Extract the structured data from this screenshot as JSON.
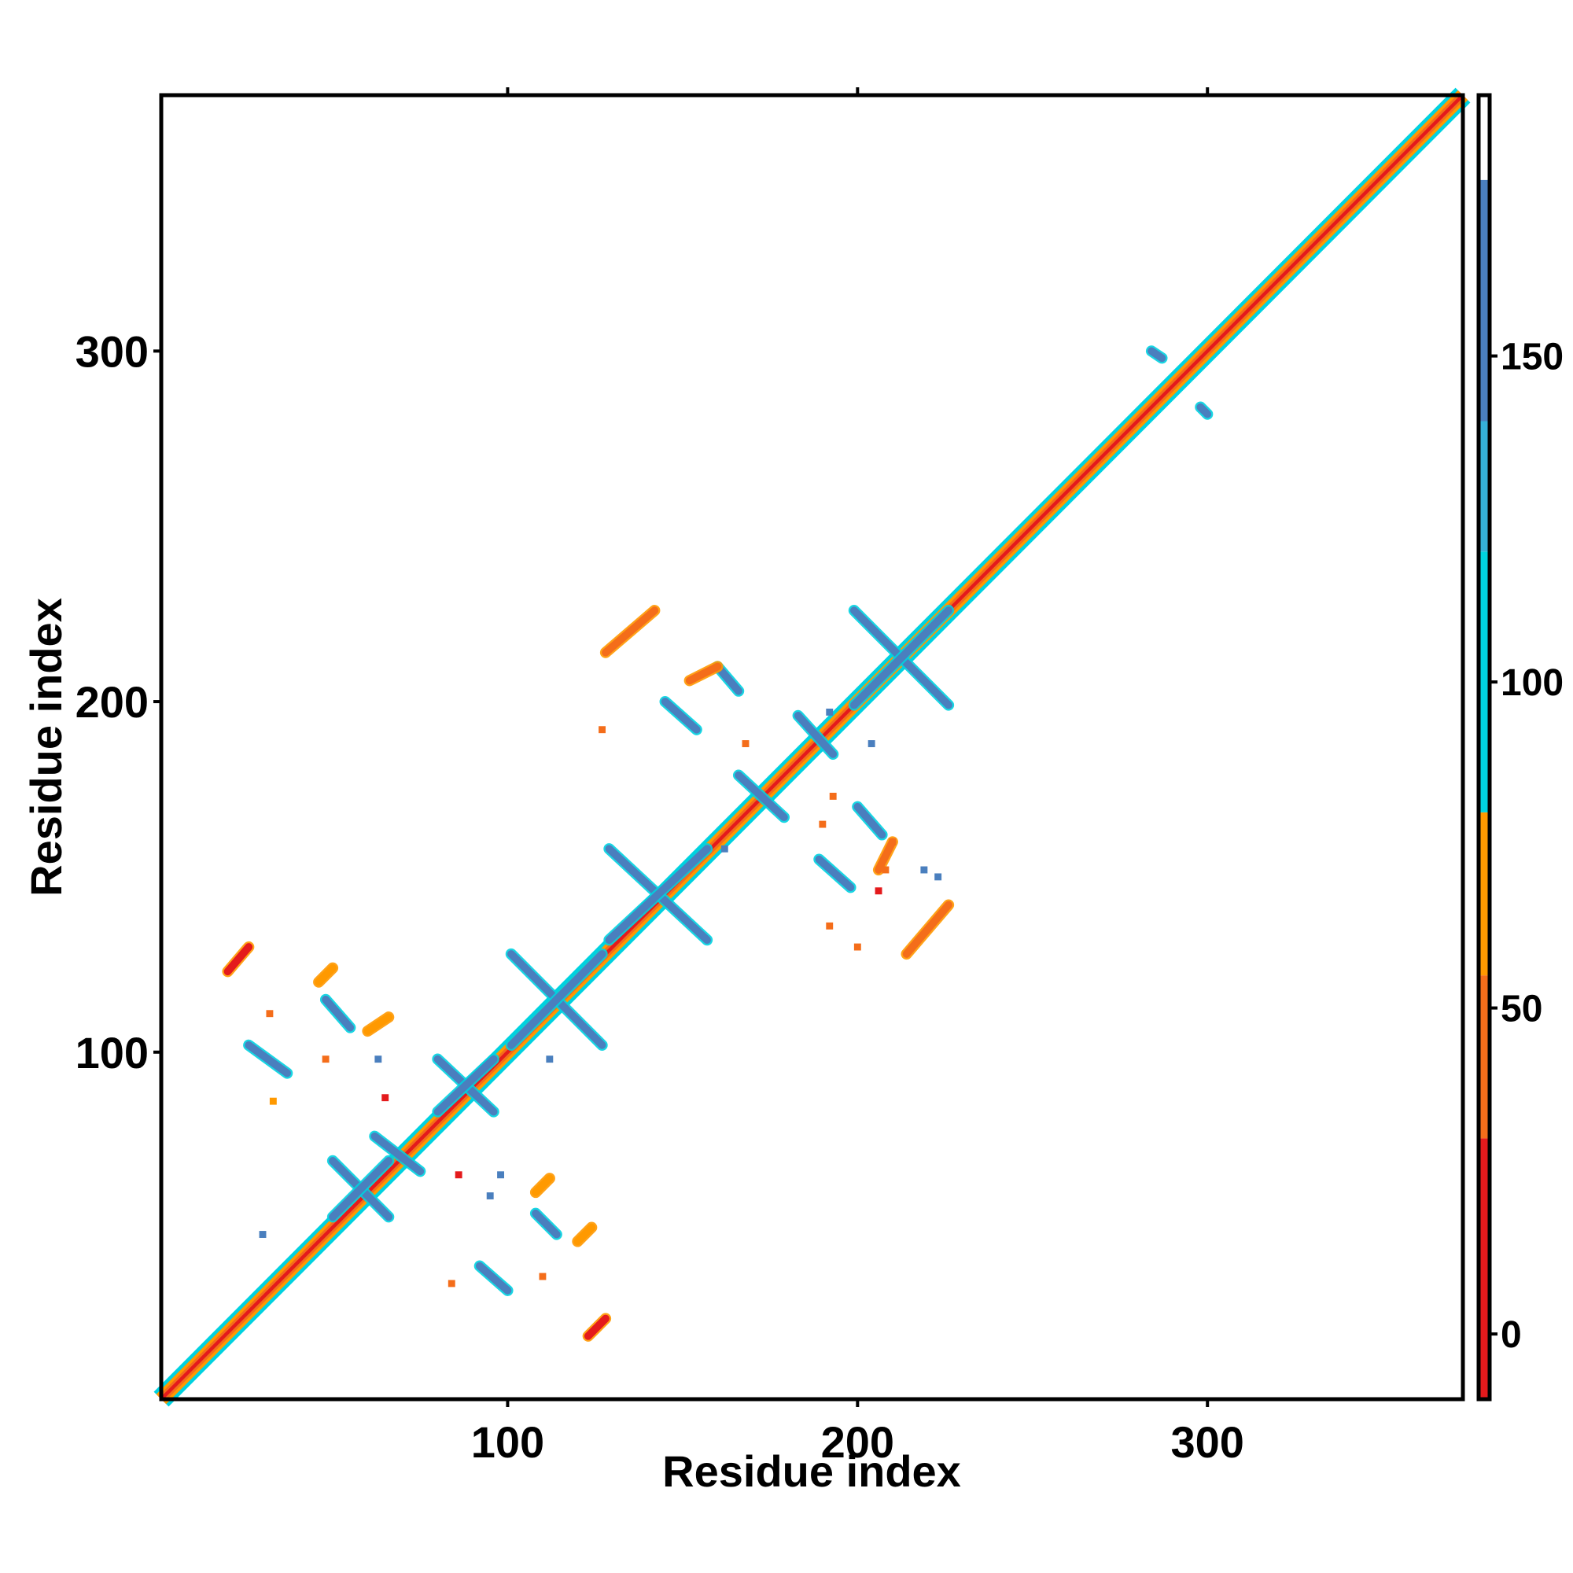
{
  "chart_data": {
    "type": "heatmap",
    "title": "",
    "xlabel": "Residue index",
    "ylabel": "Residue index",
    "xlim": [
      1,
      373
    ],
    "ylim": [
      1,
      373
    ],
    "x_ticks": [
      100,
      200,
      300
    ],
    "x_tick_labels": [
      "100",
      "200",
      "300"
    ],
    "y_ticks": [
      100,
      200,
      300
    ],
    "y_tick_labels": [
      "100",
      "200",
      "300"
    ],
    "grid": false,
    "legend": "right colorbar",
    "colorbar": {
      "range": [
        -10,
        190
      ],
      "ticks": [
        0,
        50,
        100,
        150
      ],
      "tick_labels": [
        "0",
        "50",
        "100",
        "150"
      ],
      "bands": [
        {
          "from": -10,
          "to": 30,
          "color": "#e41a1c"
        },
        {
          "from": 30,
          "to": 55,
          "color": "#f46d1a"
        },
        {
          "from": 55,
          "to": 80,
          "color": "#ff9900"
        },
        {
          "from": 80,
          "to": 120,
          "color": "#00d2e0"
        },
        {
          "from": 120,
          "to": 140,
          "color": "#35b0d8"
        },
        {
          "from": 140,
          "to": 177,
          "color": "#4a7fbe"
        },
        {
          "from": 177,
          "to": 190,
          "color": "#ffffff"
        }
      ]
    },
    "diagonal": {
      "from": 1,
      "to": 373
    },
    "segments": [
      {
        "x": [
          50,
          66
        ],
        "y": [
          69,
          53
        ],
        "value": 160
      },
      {
        "x": [
          66,
          50
        ],
        "y": [
          69,
          53
        ],
        "value": 160
      },
      {
        "x": [
          62,
          75
        ],
        "y": [
          76,
          66
        ],
        "value": 160
      },
      {
        "x": [
          80,
          96
        ],
        "y": [
          98,
          83
        ],
        "value": 160
      },
      {
        "x": [
          80,
          96
        ],
        "y": [
          83,
          98
        ],
        "value": 160
      },
      {
        "x": [
          101,
          127
        ],
        "y": [
          128,
          102
        ],
        "value": 160
      },
      {
        "x": [
          101,
          127
        ],
        "y": [
          102,
          128
        ],
        "value": 160
      },
      {
        "x": [
          129,
          157
        ],
        "y": [
          158,
          132
        ],
        "value": 160
      },
      {
        "x": [
          129,
          157
        ],
        "y": [
          132,
          158
        ],
        "value": 160
      },
      {
        "x": [
          166,
          179
        ],
        "y": [
          179,
          167
        ],
        "value": 160
      },
      {
        "x": [
          183,
          193
        ],
        "y": [
          196,
          185
        ],
        "value": 160
      },
      {
        "x": [
          199,
          226
        ],
        "y": [
          226,
          199
        ],
        "value": 160
      },
      {
        "x": [
          199,
          226
        ],
        "y": [
          199,
          226
        ],
        "value": 160
      },
      {
        "x": [
          26,
          37
        ],
        "y": [
          102,
          94
        ],
        "value": 160
      },
      {
        "x": [
          48,
          55
        ],
        "y": [
          115,
          107
        ],
        "value": 160
      },
      {
        "x": [
          92,
          100
        ],
        "y": [
          39,
          32
        ],
        "value": 160
      },
      {
        "x": [
          108,
          114
        ],
        "y": [
          54,
          48
        ],
        "value": 160
      },
      {
        "x": [
          145,
          154
        ],
        "y": [
          200,
          192
        ],
        "value": 160
      },
      {
        "x": [
          160,
          166
        ],
        "y": [
          210,
          203
        ],
        "value": 160
      },
      {
        "x": [
          189,
          198
        ],
        "y": [
          155,
          147
        ],
        "value": 160
      },
      {
        "x": [
          200,
          207
        ],
        "y": [
          170,
          162
        ],
        "value": 160
      },
      {
        "x": [
          284,
          287
        ],
        "y": [
          300,
          298
        ],
        "value": 160
      },
      {
        "x": [
          298,
          300
        ],
        "y": [
          284,
          282
        ],
        "value": 160
      },
      {
        "x": [
          20,
          26
        ],
        "y": [
          123,
          130
        ],
        "value": 20
      },
      {
        "x": [
          123,
          128
        ],
        "y": [
          19,
          24
        ],
        "value": 20
      },
      {
        "x": [
          128,
          142
        ],
        "y": [
          214,
          226
        ],
        "value": 40
      },
      {
        "x": [
          214,
          226
        ],
        "y": [
          128,
          142
        ],
        "value": 40
      },
      {
        "x": [
          152,
          160
        ],
        "y": [
          206,
          210
        ],
        "value": 40
      },
      {
        "x": [
          206,
          210
        ],
        "y": [
          152,
          160
        ],
        "value": 40
      },
      {
        "x": [
          46,
          50
        ],
        "y": [
          120,
          124
        ],
        "value": 60
      },
      {
        "x": [
          60,
          66
        ],
        "y": [
          106,
          110
        ],
        "value": 60
      },
      {
        "x": [
          108,
          112
        ],
        "y": [
          60,
          64
        ],
        "value": 60
      },
      {
        "x": [
          120,
          124
        ],
        "y": [
          46,
          50
        ],
        "value": 60
      }
    ],
    "points": [
      {
        "x": 32,
        "y": 111,
        "value": 40
      },
      {
        "x": 33,
        "y": 86,
        "value": 60
      },
      {
        "x": 48,
        "y": 98,
        "value": 30
      },
      {
        "x": 63,
        "y": 98,
        "value": 140
      },
      {
        "x": 65,
        "y": 87,
        "value": 20
      },
      {
        "x": 84,
        "y": 34,
        "value": 50
      },
      {
        "x": 86,
        "y": 65,
        "value": 20
      },
      {
        "x": 95,
        "y": 59,
        "value": 140
      },
      {
        "x": 98,
        "y": 65,
        "value": 140
      },
      {
        "x": 112,
        "y": 98,
        "value": 140
      },
      {
        "x": 110,
        "y": 36,
        "value": 40
      },
      {
        "x": 127,
        "y": 192,
        "value": 40
      },
      {
        "x": 168,
        "y": 188,
        "value": 40
      },
      {
        "x": 190,
        "y": 165,
        "value": 40
      },
      {
        "x": 193,
        "y": 173,
        "value": 40
      },
      {
        "x": 192,
        "y": 136,
        "value": 40
      },
      {
        "x": 200,
        "y": 130,
        "value": 30
      },
      {
        "x": 206,
        "y": 146,
        "value": 20
      },
      {
        "x": 208,
        "y": 152,
        "value": 30
      },
      {
        "x": 210,
        "y": 160,
        "value": 40
      },
      {
        "x": 192,
        "y": 197,
        "value": 140
      },
      {
        "x": 204,
        "y": 188,
        "value": 140
      },
      {
        "x": 223,
        "y": 150,
        "value": 140
      },
      {
        "x": 219,
        "y": 152,
        "value": 140
      },
      {
        "x": 162,
        "y": 158,
        "value": 140
      },
      {
        "x": 30,
        "y": 48,
        "value": 140
      }
    ]
  }
}
